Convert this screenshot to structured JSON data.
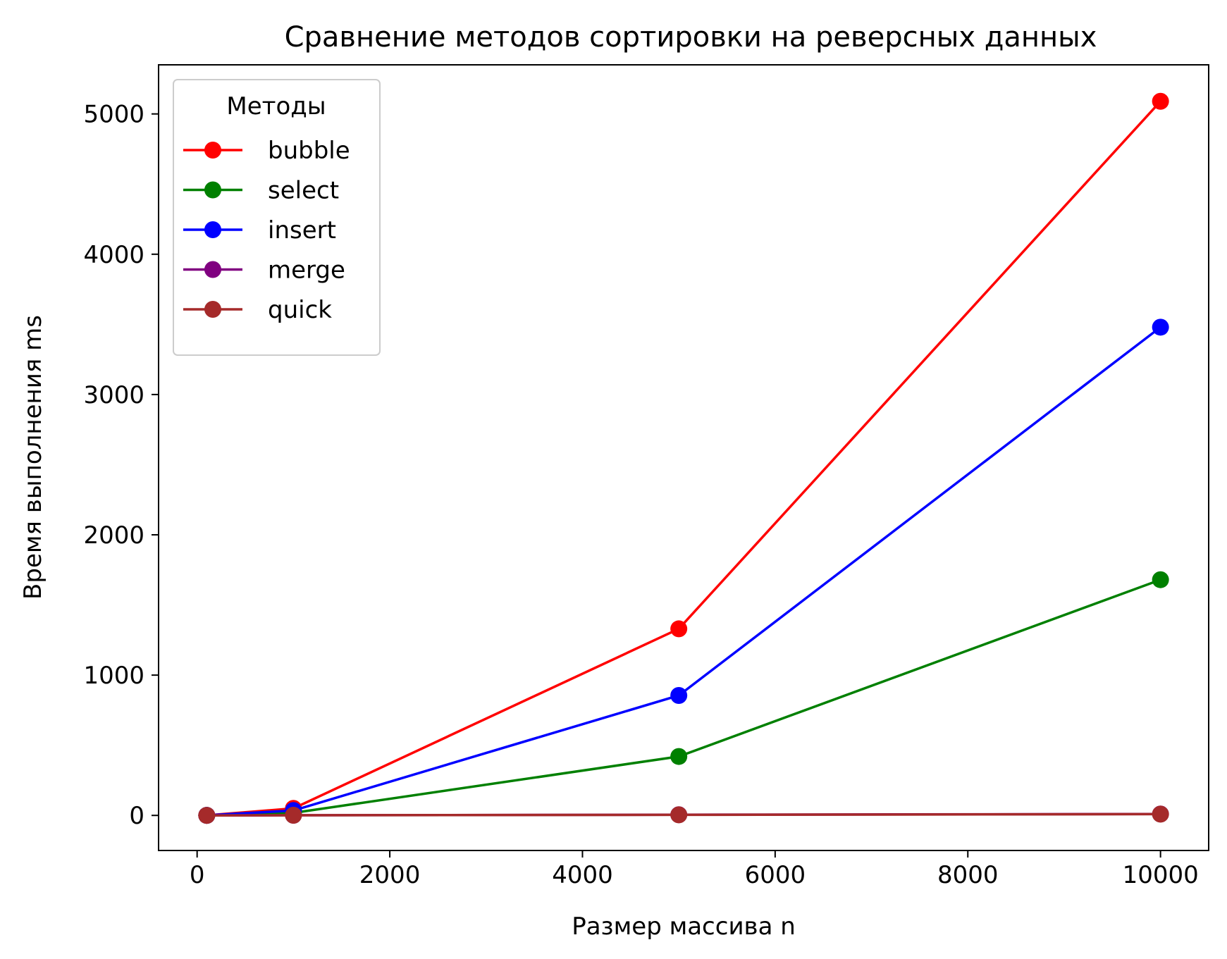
{
  "chart_data": {
    "type": "line",
    "title": "Сравнение методов сортировки на реверсных данных",
    "xlabel": "Размер массива n",
    "ylabel": "Время выполнения ms",
    "x": [
      100,
      1000,
      5000,
      10000
    ],
    "xlim": [
      -400,
      10500
    ],
    "ylim": [
      -250,
      5350
    ],
    "xticks": [
      0,
      2000,
      4000,
      6000,
      8000,
      10000
    ],
    "yticks": [
      0,
      1000,
      2000,
      3000,
      4000,
      5000
    ],
    "grid": false,
    "legend": {
      "title": "Методы",
      "position": "top-left"
    },
    "series": [
      {
        "name": "bubble",
        "color": "#ff0000",
        "values": [
          0.5,
          50,
          1330,
          5090
        ]
      },
      {
        "name": "select",
        "color": "#008000",
        "values": [
          0.2,
          18,
          420,
          1680
        ]
      },
      {
        "name": "insert",
        "color": "#0000ff",
        "values": [
          0.3,
          35,
          855,
          3480
        ]
      },
      {
        "name": "merge",
        "color": "#800080",
        "values": [
          0.1,
          1,
          5,
          10
        ]
      },
      {
        "name": "quick",
        "color": "#a52a2a",
        "values": [
          0.1,
          1,
          4,
          9
        ]
      }
    ]
  }
}
